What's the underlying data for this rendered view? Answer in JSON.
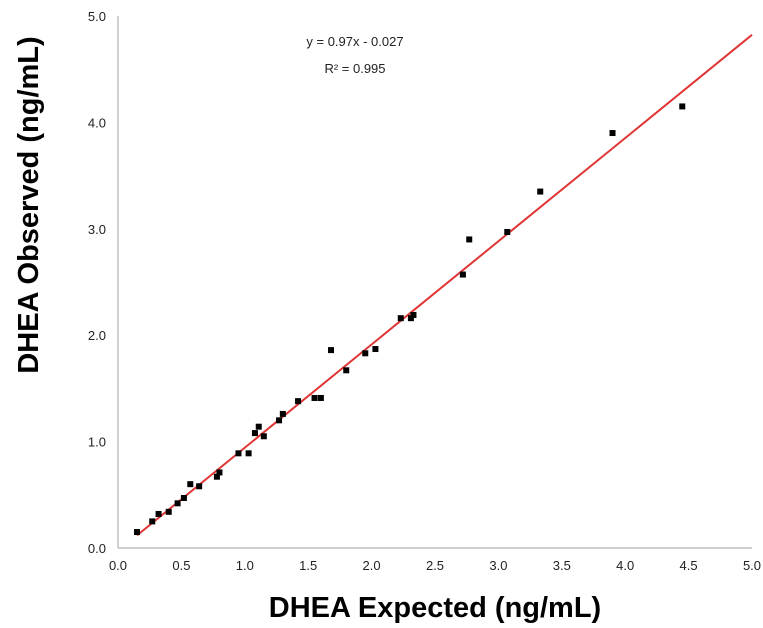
{
  "chart_data": {
    "type": "scatter",
    "title": "",
    "xlabel": "DHEA Expected (ng/mL)",
    "ylabel": "DHEA Observed (ng/mL)",
    "xlim": [
      0.0,
      5.0
    ],
    "ylim": [
      0.0,
      5.0
    ],
    "x_ticks": [
      "0.0",
      "0.5",
      "1.0",
      "1.5",
      "2.0",
      "2.5",
      "3.0",
      "3.5",
      "4.0",
      "4.5",
      "5.0"
    ],
    "y_ticks": [
      "0.0",
      "1.0",
      "2.0",
      "3.0",
      "4.0",
      "5.0"
    ],
    "grid": false,
    "points": [
      {
        "x": 0.15,
        "y": 0.15
      },
      {
        "x": 0.27,
        "y": 0.25
      },
      {
        "x": 0.32,
        "y": 0.32
      },
      {
        "x": 0.4,
        "y": 0.34
      },
      {
        "x": 0.47,
        "y": 0.42
      },
      {
        "x": 0.52,
        "y": 0.47
      },
      {
        "x": 0.57,
        "y": 0.6
      },
      {
        "x": 0.64,
        "y": 0.58
      },
      {
        "x": 0.78,
        "y": 0.67
      },
      {
        "x": 0.8,
        "y": 0.71
      },
      {
        "x": 0.95,
        "y": 0.89
      },
      {
        "x": 1.03,
        "y": 0.89
      },
      {
        "x": 1.08,
        "y": 1.08
      },
      {
        "x": 1.11,
        "y": 1.14
      },
      {
        "x": 1.15,
        "y": 1.05
      },
      {
        "x": 1.27,
        "y": 1.2
      },
      {
        "x": 1.3,
        "y": 1.26
      },
      {
        "x": 1.42,
        "y": 1.38
      },
      {
        "x": 1.55,
        "y": 1.41
      },
      {
        "x": 1.6,
        "y": 1.41
      },
      {
        "x": 1.68,
        "y": 1.86
      },
      {
        "x": 1.8,
        "y": 1.67
      },
      {
        "x": 1.95,
        "y": 1.83
      },
      {
        "x": 2.03,
        "y": 1.87
      },
      {
        "x": 2.23,
        "y": 2.16
      },
      {
        "x": 2.31,
        "y": 2.16
      },
      {
        "x": 2.33,
        "y": 2.19
      },
      {
        "x": 2.72,
        "y": 2.57
      },
      {
        "x": 2.77,
        "y": 2.9
      },
      {
        "x": 3.07,
        "y": 2.97
      },
      {
        "x": 3.33,
        "y": 3.35
      },
      {
        "x": 3.9,
        "y": 3.9
      },
      {
        "x": 4.45,
        "y": 4.15
      }
    ],
    "trendline": {
      "color": "#e03535",
      "x_range": [
        0.15,
        5.0
      ],
      "slope": 0.97,
      "intercept": -0.027,
      "equation": "y = 0.97x - 0.027",
      "r_squared": "R² = 0.995"
    },
    "marker_color": "#000000",
    "axis_color": "#b0b0b0"
  }
}
